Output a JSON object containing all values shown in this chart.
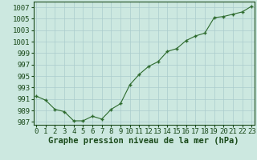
{
  "x": [
    0,
    1,
    2,
    3,
    4,
    5,
    6,
    7,
    8,
    9,
    10,
    11,
    12,
    13,
    14,
    15,
    16,
    17,
    18,
    19,
    20,
    21,
    22,
    23
  ],
  "y": [
    991.5,
    990.8,
    989.2,
    988.8,
    987.2,
    987.2,
    988.0,
    987.5,
    989.2,
    990.2,
    993.5,
    995.3,
    996.7,
    997.5,
    999.3,
    999.8,
    1001.2,
    1002.0,
    1002.5,
    1005.2,
    1005.4,
    1005.8,
    1006.2,
    1007.2
  ],
  "xlabel": "Graphe pression niveau de la mer (hPa)",
  "ylim": [
    986.5,
    1008.0
  ],
  "yticks": [
    987,
    989,
    991,
    993,
    995,
    997,
    999,
    1001,
    1003,
    1005,
    1007
  ],
  "xlim": [
    -0.3,
    23.3
  ],
  "line_color": "#2d6a2d",
  "marker": "+",
  "bg_color": "#cce8e0",
  "grid_color": "#aacccc",
  "text_color": "#1a4a1a",
  "tick_fontsize": 6.5,
  "xlabel_fontsize": 7.5
}
